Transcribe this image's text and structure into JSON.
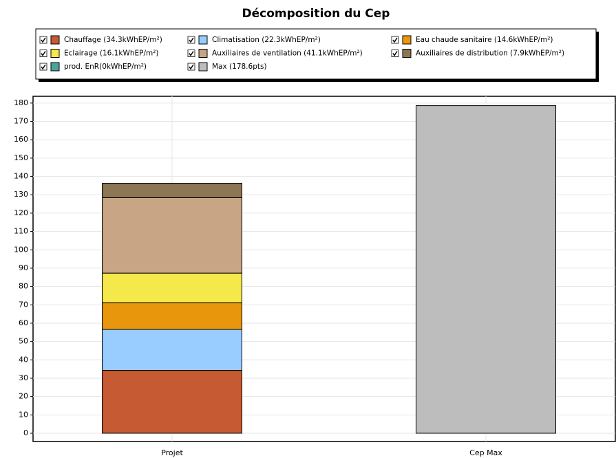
{
  "chart_data": {
    "type": "stacked_bar",
    "title": "Décomposition du Cep",
    "categories": [
      "Projet",
      "Cep Max"
    ],
    "series": [
      {
        "name": "Chauffage (34.3kWhEP/m²)",
        "color": "#c55a33",
        "values": [
          34.3,
          null
        ]
      },
      {
        "name": "Climatisation (22.3kWhEP/m²)",
        "color": "#99ccff",
        "values": [
          22.3,
          null
        ]
      },
      {
        "name": "Eau chaude sanitaire (14.6kWhEP/m²)",
        "color": "#e8960c",
        "values": [
          14.6,
          null
        ]
      },
      {
        "name": "Eclairage (16.1kWhEP/m²)",
        "color": "#f5e84a",
        "values": [
          16.1,
          null
        ]
      },
      {
        "name": "Auxiliaires de ventilation (41.1kWhEP/m²)",
        "color": "#c8a585",
        "values": [
          41.1,
          null
        ]
      },
      {
        "name": "Auxiliaires de distribution (7.9kWhEP/m²)",
        "color": "#8c7654",
        "values": [
          7.9,
          null
        ]
      },
      {
        "name": "prod. EnR(0kWhEP/m²)",
        "color": "#4aa598",
        "values": [
          0,
          null
        ]
      },
      {
        "name": "Max (178.6pts)",
        "color": "#bdbdbd",
        "values": [
          null,
          178.6
        ]
      }
    ],
    "ylim": [
      -4.5,
      183.7
    ],
    "yticks": [
      0,
      10,
      20,
      30,
      40,
      50,
      60,
      70,
      80,
      90,
      100,
      110,
      120,
      130,
      140,
      150,
      160,
      170,
      180
    ],
    "grid": true
  }
}
